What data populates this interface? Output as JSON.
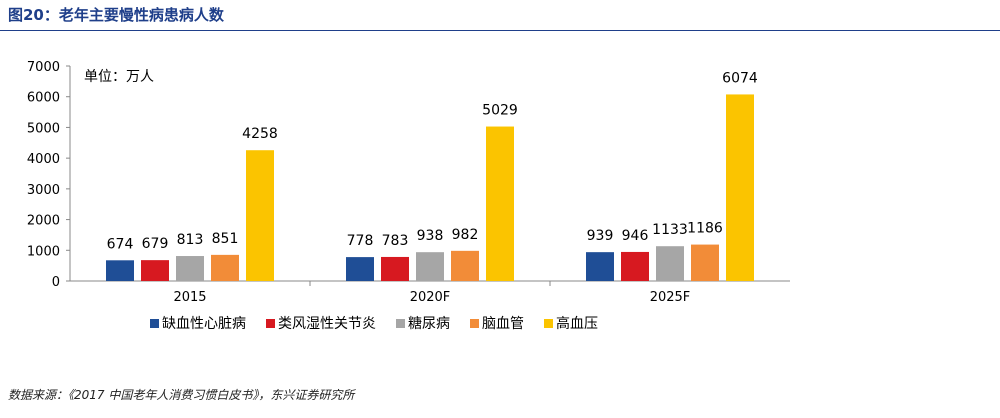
{
  "figure_title": "图20：老年主要慢性病患病人数",
  "source_note": "数据来源：《2017 中国老年人消费习惯白皮书》，东兴证券研究所",
  "chart_data": {
    "type": "bar",
    "title": "",
    "xlabel": "",
    "ylabel": "",
    "unit_label": "单位：万人",
    "categories": [
      "2015",
      "2020F",
      "2025F"
    ],
    "series": [
      {
        "name": "缺血性心脏病",
        "color": "#1f4e96",
        "values": [
          674,
          778,
          939
        ]
      },
      {
        "name": "类风湿性关节炎",
        "color": "#d71920",
        "values": [
          679,
          783,
          946
        ]
      },
      {
        "name": "糖尿病",
        "color": "#a6a6a6",
        "values": [
          813,
          938,
          1133
        ]
      },
      {
        "name": "脑血管",
        "color": "#f28c38",
        "values": [
          851,
          982,
          1186
        ]
      },
      {
        "name": "高血压",
        "color": "#fbc400",
        "values": [
          4258,
          5029,
          6074
        ]
      }
    ],
    "ylim": [
      0,
      7000
    ],
    "yticks": [
      0,
      1000,
      2000,
      3000,
      4000,
      5000,
      6000,
      7000
    ],
    "grid": false,
    "legend_position": "bottom"
  }
}
